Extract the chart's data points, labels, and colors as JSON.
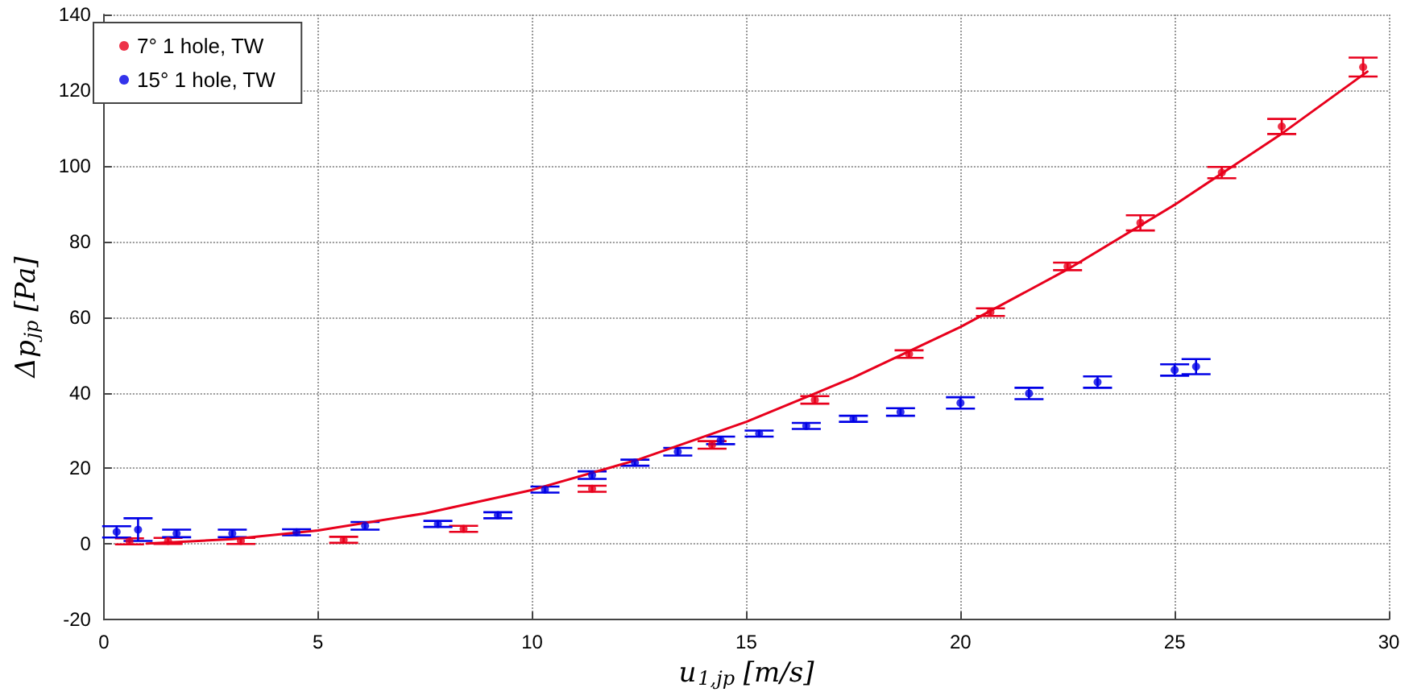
{
  "chart_data": {
    "type": "scatter",
    "xlabel": "u$_{1,jp}$ [m/s]",
    "ylabel": "Δp$_{jp}$ [Pa]",
    "xlim": [
      0,
      30
    ],
    "xticks": [
      0,
      5,
      10,
      15,
      20,
      25,
      30
    ],
    "ylim": [
      -20,
      140
    ],
    "yticks": [
      -20,
      0,
      20,
      40,
      60,
      80,
      100,
      120,
      140
    ],
    "grid": true,
    "legend": "top left",
    "marker": "circle",
    "series": [
      {
        "name": "7° 1 hole, TW",
        "color": "#e8001c",
        "x": [
          0.6,
          1.5,
          3.2,
          5.6,
          8.4,
          11.4,
          14.2,
          16.6,
          18.8,
          20.7,
          22.5,
          24.2,
          26.1,
          27.5,
          29.4
        ],
        "values": [
          0.7,
          0.8,
          0.8,
          1.1,
          4.0,
          14.6,
          26.2,
          38.1,
          50.2,
          61.3,
          73.4,
          84.9,
          98.2,
          110.4,
          126.1
        ],
        "errors": [
          0.8,
          0.8,
          0.8,
          0.8,
          0.8,
          0.8,
          1,
          1,
          1,
          1,
          1,
          2,
          1.5,
          2,
          2.5
        ]
      },
      {
        "name": "15° 1 hole, TW",
        "color": "#0000e6",
        "x": [
          0.3,
          0.8,
          1.7,
          3.0,
          4.5,
          6.1,
          7.8,
          9.2,
          10.3,
          11.4,
          12.4,
          13.4,
          14.4,
          15.3,
          16.4,
          17.5,
          18.6,
          20.0,
          21.6,
          23.2,
          25.0,
          25.5
        ],
        "values": [
          3.2,
          3.8,
          2.8,
          2.8,
          3.1,
          4.8,
          5.3,
          7.6,
          14.4,
          18.2,
          21.5,
          24.4,
          27.4,
          29.2,
          31.2,
          33.1,
          34.9,
          37.3,
          39.8,
          42.8,
          46.0,
          46.9
        ],
        "errors": [
          1.5,
          3,
          1,
          1,
          0.8,
          1,
          0.8,
          0.8,
          0.8,
          1,
          0.8,
          1,
          1,
          0.8,
          0.8,
          0.8,
          1,
          1.5,
          1.5,
          1.5,
          1.5,
          2
        ]
      },
      {
        "type": "line",
        "color": "#e8001c",
        "marker": "none",
        "line_style": "solid",
        "x": [
          1,
          3,
          5,
          7.5,
          10,
          12.5,
          15,
          17.5,
          20,
          22.5,
          25,
          27.5,
          29.5
        ],
        "values": [
          0.1,
          1.3,
          3.6,
          8.1,
          14.3,
          22.4,
          32.3,
          44,
          57.4,
          72.6,
          89.7,
          108.5,
          124.9
        ]
      }
    ]
  }
}
